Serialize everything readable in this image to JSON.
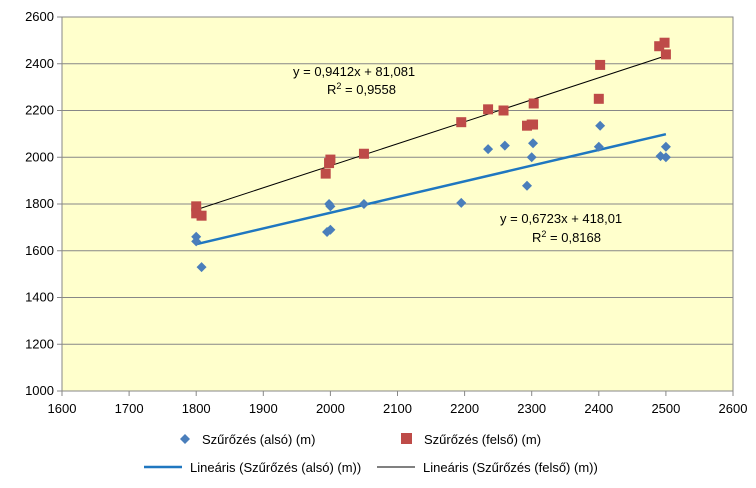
{
  "colors": {
    "plot_background": "#ffffcc",
    "gridline": "#878787",
    "series_lower": "#4a7ebb",
    "series_upper": "#be4b48",
    "trend_lower": "#1f77c0",
    "trend_upper": "#000000"
  },
  "chart_data": {
    "type": "scatter",
    "title": "",
    "xlabel": "",
    "ylabel": "",
    "xlim": [
      1600,
      2600
    ],
    "ylim": [
      1000,
      2600
    ],
    "x_ticks": [
      1600,
      1700,
      1800,
      1900,
      2000,
      2100,
      2200,
      2300,
      2400,
      2500,
      2600
    ],
    "y_ticks": [
      1000,
      1200,
      1400,
      1600,
      1800,
      2000,
      2200,
      2400,
      2600
    ],
    "grid": "horizontal",
    "legend_position": "bottom",
    "series": [
      {
        "name": "Szűrőzés (alsó) (m)",
        "marker": "diamond",
        "color": "#4a7ebb",
        "points": [
          [
            1800,
            1660
          ],
          [
            1800,
            1640
          ],
          [
            1808,
            1530
          ],
          [
            1995,
            1680
          ],
          [
            2000,
            1690
          ],
          [
            1998,
            1800
          ],
          [
            2000,
            1790
          ],
          [
            2050,
            1800
          ],
          [
            2195,
            1805
          ],
          [
            2235,
            2035
          ],
          [
            2260,
            2050
          ],
          [
            2293,
            1878
          ],
          [
            2300,
            2000
          ],
          [
            2302,
            2060
          ],
          [
            2400,
            2045
          ],
          [
            2402,
            2135
          ],
          [
            2492,
            2005
          ],
          [
            2500,
            2000
          ],
          [
            2500,
            2045
          ]
        ]
      },
      {
        "name": "Szűrőzés (felső) (m)",
        "marker": "square",
        "color": "#be4b48",
        "points": [
          [
            1800,
            1790
          ],
          [
            1800,
            1760
          ],
          [
            1808,
            1750
          ],
          [
            1993,
            1930
          ],
          [
            1998,
            1975
          ],
          [
            2000,
            1990
          ],
          [
            2050,
            2015
          ],
          [
            2195,
            2150
          ],
          [
            2235,
            2205
          ],
          [
            2258,
            2200
          ],
          [
            2293,
            2135
          ],
          [
            2300,
            2140
          ],
          [
            2302,
            2140
          ],
          [
            2303,
            2230
          ],
          [
            2400,
            2250
          ],
          [
            2402,
            2395
          ],
          [
            2490,
            2475
          ],
          [
            2498,
            2490
          ],
          [
            2500,
            2440
          ]
        ]
      }
    ],
    "trendlines": [
      {
        "name": "Lineáris (Szűrőzés (alsó) (m))",
        "slope": 0.6723,
        "intercept": 418.01,
        "x_range": [
          1800,
          2500
        ],
        "color": "#1f77c0",
        "equation": "y = 0,6723x + 418,01",
        "r2_prefix": "R",
        "r2_value": " = 0,8168"
      },
      {
        "name": "Lineáris (Szűrőzés (felső) (m))",
        "slope": 0.9412,
        "intercept": 81.081,
        "x_range": [
          1800,
          2500
        ],
        "color": "#000000",
        "equation": "y = 0,9412x + 81,081",
        "r2_prefix": "R",
        "r2_value": " = 0,9558"
      }
    ]
  }
}
